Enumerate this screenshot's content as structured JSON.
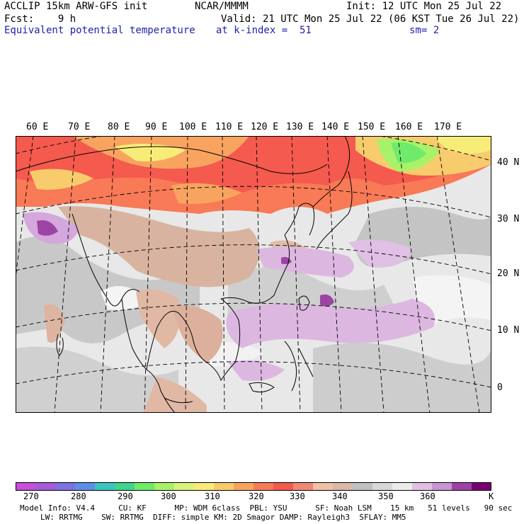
{
  "header": {
    "model_line": "ACCLIP 15km ARW-GFS init",
    "org": "NCAR/MMMM",
    "init": "Init: 12 UTC Mon 25 Jul 22",
    "fcst": "Fcst:    9 h",
    "valid": "Valid: 21 UTC Mon 25 Jul 22 (06 KST Tue 26 Jul 22)",
    "field": "Equivalent potential temperature",
    "level": "at k-index =  51",
    "smooth": "sm= 2"
  },
  "map": {
    "lon_labels": [
      "60 E",
      "70 E",
      "80 E",
      "90 E",
      "100 E",
      "110 E",
      "120 E",
      "130 E",
      "140 E",
      "150 E",
      "160 E",
      "170 E"
    ],
    "lat_labels": [
      "40 N",
      "30 N",
      "20 N",
      "10 N",
      "0"
    ]
  },
  "colorbar": {
    "unit": "K",
    "ticks": [
      "270",
      "280",
      "290",
      "300",
      "310",
      "320",
      "330",
      "340",
      "350",
      "360"
    ],
    "colors": [
      "#c84fd8",
      "#a45cd8",
      "#7e72e0",
      "#5f8ee8",
      "#3cc4c0",
      "#3fd58a",
      "#6fea6a",
      "#a8f26a",
      "#d8f47a",
      "#f8ec78",
      "#f8cc6c",
      "#f8a460",
      "#f87a56",
      "#f45a4e",
      "#f08874",
      "#f0c0a8",
      "#d8b8a8",
      "#c0c0c0",
      "#d8d8d8",
      "#ececec",
      "#e0c2e0",
      "#c894d4",
      "#9c44a4",
      "#780070"
    ]
  },
  "model_info": {
    "line1": "Model Info: V4.4     CU: KF      MP: WDM 6class  PBL: YSU      SF: Noah LSM    15 km   51 levels   90 sec",
    "line2": "LW: RRTMG    SW: RRTMG  DIFF: simple KM: 2D Smagor DAMP: Rayleigh3  SFLAY: MM5"
  }
}
